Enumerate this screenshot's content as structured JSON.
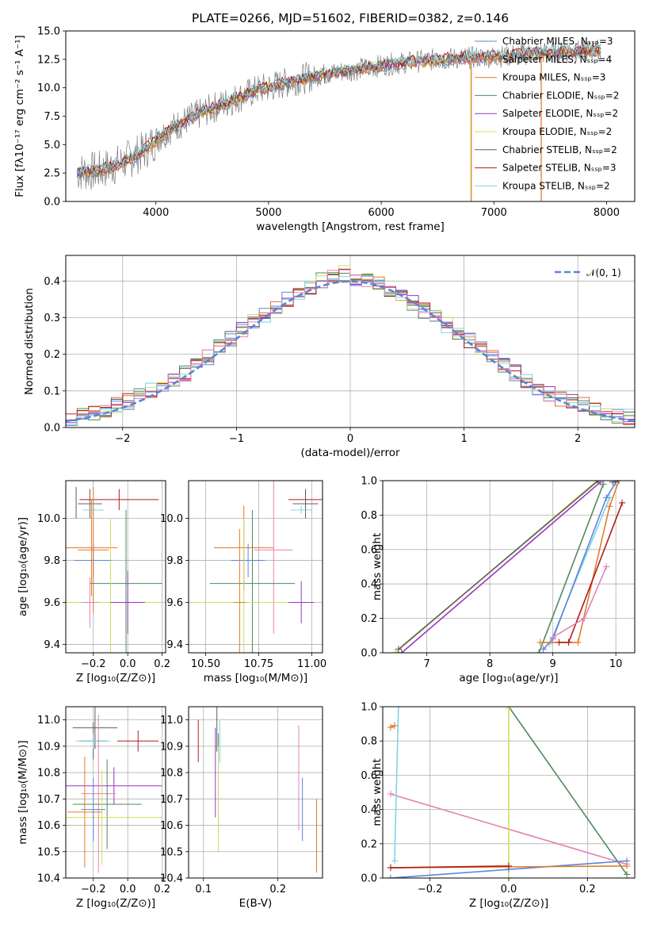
{
  "colors": {
    "chabrier_miles": "#5b84d8",
    "salpeter_miles": "#e8712a",
    "kroupa_miles": "#e07f2a",
    "chabrier_elodie": "#4f8a5d",
    "salpeter_elodie": "#9c34c4",
    "kroupa_elodie": "#cde05a",
    "chabrier_stelib": "#5f5f5f",
    "salpeter_stelib": "#b11a1a",
    "kroupa_stelib": "#7fd4e6",
    "pink": "#e383b7",
    "gray": "#7f7f7f",
    "normal": "#5b84d8"
  },
  "chart_data": [
    {
      "type": "line",
      "title": "PLATE=0266, MJD=51602, FIBERID=0382, z=0.146",
      "xlabel": "wavelength [Angstrom, rest frame]",
      "ylabel": "Flux [fλ10⁻¹⁷ erg cm⁻² s⁻¹ A⁻¹]",
      "xlim": [
        3200,
        8250
      ],
      "ylim": [
        0,
        15
      ],
      "xticks": [
        "4000",
        "5000",
        "6000",
        "7000",
        "8000"
      ],
      "yticks": [
        "0.0",
        "2.5",
        "5.0",
        "7.5",
        "10.0",
        "12.5",
        "15.0"
      ],
      "legend_position": "top-right",
      "legend": [
        "Chabrier MILES, Nₛₛₚ=3",
        "Salpeter MILES, Nₛₛₚ=4",
        "Kroupa MILES, Nₛₛₚ=3",
        "Chabrier ELODIE, Nₛₛₚ=2",
        "Salpeter ELODIE, Nₛₛₚ=2",
        "Kroupa ELODIE, Nₛₛₚ=2",
        "Chabrier STELIB, Nₛₛₚ=2",
        "Salpeter STELIB, Nₛₛₚ=3",
        "Kroupa STELIB, Nₛₛₚ=2"
      ],
      "continuum": {
        "x": [
          3300,
          3500,
          3700,
          3900,
          4000,
          4100,
          4300,
          4500,
          4700,
          4900,
          5100,
          5300,
          5500,
          5700,
          5900,
          6100,
          6300,
          6500,
          6700,
          6900,
          7100,
          7300,
          7500,
          7700,
          7900
        ],
        "y": [
          2.6,
          2.7,
          3.4,
          4.5,
          5.4,
          6.2,
          7.3,
          8.2,
          9.0,
          9.8,
          10.3,
          10.8,
          11.2,
          11.5,
          11.8,
          12.1,
          12.3,
          12.5,
          12.6,
          12.7,
          12.8,
          13.0,
          13.1,
          13.2,
          13.3
        ]
      }
    },
    {
      "type": "area",
      "xlabel": "(data-model)/error",
      "ylabel": "Normed distribution",
      "xlim": [
        -2.5,
        2.5
      ],
      "ylim": [
        0,
        0.47
      ],
      "xticks": [
        "−2",
        "−1",
        "0",
        "1",
        "2"
      ],
      "yticks": [
        "0.0",
        "0.1",
        "0.2",
        "0.3",
        "0.4"
      ],
      "grid": true,
      "legend": [
        "𝒩(0, 1)"
      ],
      "legend_position": "top-right",
      "histogram_centers": [
        -2.45,
        -2.35,
        -2.25,
        -2.15,
        -2.05,
        -1.95,
        -1.85,
        -1.75,
        -1.65,
        -1.55,
        -1.45,
        -1.35,
        -1.25,
        -1.15,
        -1.05,
        -0.95,
        -0.85,
        -0.75,
        -0.65,
        -0.55,
        -0.45,
        -0.35,
        -0.25,
        -0.15,
        -0.05,
        0.05,
        0.15,
        0.25,
        0.35,
        0.45,
        0.55,
        0.65,
        0.75,
        0.85,
        0.95,
        1.05,
        1.15,
        1.25,
        1.35,
        1.45,
        1.55,
        1.65,
        1.75,
        1.85,
        1.95,
        2.05,
        2.15,
        2.25,
        2.35,
        2.45
      ],
      "histogram_values": [
        0.02,
        0.03,
        0.04,
        0.05,
        0.06,
        0.07,
        0.09,
        0.1,
        0.12,
        0.13,
        0.15,
        0.17,
        0.19,
        0.22,
        0.24,
        0.27,
        0.29,
        0.31,
        0.33,
        0.35,
        0.37,
        0.38,
        0.4,
        0.41,
        0.42,
        0.41,
        0.4,
        0.39,
        0.38,
        0.36,
        0.34,
        0.32,
        0.3,
        0.28,
        0.26,
        0.24,
        0.22,
        0.2,
        0.17,
        0.15,
        0.13,
        0.11,
        0.09,
        0.08,
        0.07,
        0.06,
        0.05,
        0.04,
        0.03,
        0.03
      ]
    },
    {
      "type": "scatter",
      "xlabel": "Z [log₁₀(Z/Z⊙)]",
      "ylabel": "age  [log₁₀(age/yr)]",
      "xlim": [
        -0.36,
        0.22
      ],
      "ylim": [
        9.36,
        10.18
      ],
      "xticks": [
        "−0.2",
        "0.0",
        "0.2"
      ],
      "yticks": [
        "9.4",
        "9.6",
        "9.8",
        "10.0"
      ]
    },
    {
      "type": "scatter",
      "xlabel": "mass [log₁₀(M/M⊙)]",
      "xlim": [
        10.42,
        11.05
      ],
      "ylim": [
        9.36,
        10.18
      ],
      "xticks": [
        "10.50",
        "10.75",
        "11.00"
      ],
      "yticks": [
        "9.4",
        "9.6",
        "9.8",
        "10.0"
      ]
    },
    {
      "type": "line",
      "xlabel": "age  [log₁₀(age/yr)]",
      "ylabel": "mass weight",
      "xlim": [
        6.3,
        10.3
      ],
      "ylim": [
        0,
        1
      ],
      "xticks": [
        "7",
        "8",
        "9",
        "10"
      ],
      "yticks": [
        "0.0",
        "0.2",
        "0.4",
        "0.6",
        "0.8",
        "1.0"
      ],
      "grid": true
    },
    {
      "type": "scatter",
      "xlabel": "Z [log₁₀(Z/Z⊙)]",
      "ylabel": "mass [log₁₀(M/M⊙)]",
      "xlim": [
        -0.36,
        0.22
      ],
      "ylim": [
        10.4,
        11.05
      ],
      "xticks": [
        "−0.2",
        "0.0",
        "0.2"
      ],
      "yticks": [
        "10.4",
        "10.5",
        "10.6",
        "10.7",
        "10.8",
        "10.9",
        "11.0"
      ]
    },
    {
      "type": "scatter",
      "xlabel": "E(B-V)",
      "xlim": [
        0.08,
        0.26
      ],
      "ylim": [
        10.4,
        11.05
      ],
      "xticks": [
        "0.1",
        "0.2"
      ],
      "yticks": [
        "10.4",
        "10.5",
        "10.6",
        "10.7",
        "10.8",
        "10.9",
        "11.0"
      ]
    },
    {
      "type": "line",
      "xlabel": "Z [log₁₀(Z/Z⊙)]",
      "ylabel": "mass weight",
      "xlim": [
        -0.32,
        0.32
      ],
      "ylim": [
        0,
        1
      ],
      "xticks": [
        "−0.2",
        "0.0",
        "0.2"
      ],
      "yticks": [
        "0.0",
        "0.2",
        "0.4",
        "0.6",
        "0.8",
        "1.0"
      ],
      "grid": true
    }
  ]
}
